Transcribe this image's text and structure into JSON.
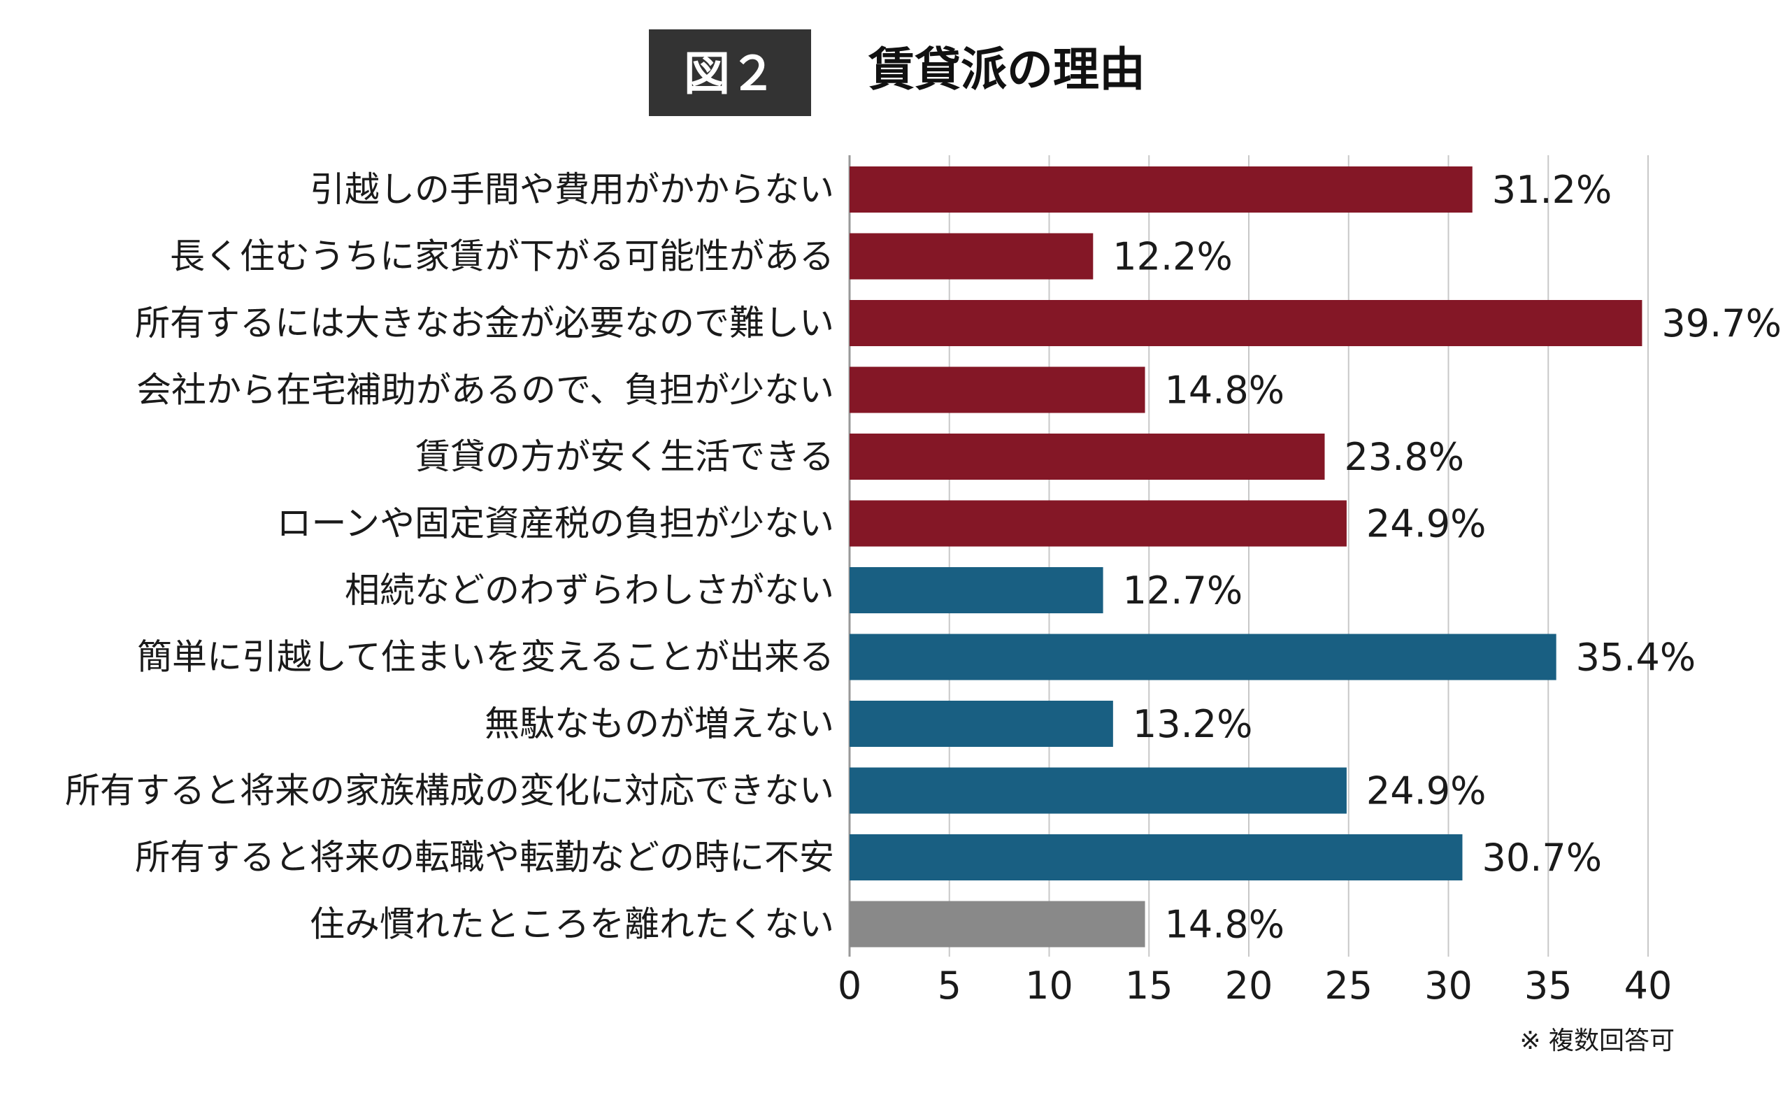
{
  "header": {
    "figure_label": "図２",
    "title": "賃貸派の理由"
  },
  "chart_data": {
    "type": "bar",
    "orientation": "horizontal",
    "title": "賃貸派の理由",
    "categories": [
      "引越しの手間や費用がかからない",
      "長く住むうちに家賃が下がる可能性がある",
      "所有するには大きなお金が必要なので難しい",
      "会社から在宅補助があるので、負担が少ない",
      "賃貸の方が安く生活できる",
      "ローンや固定資産税の負担が少ない",
      "相続などのわずらわしさがない",
      "簡単に引越して住まいを変えることが出来る",
      "無駄なものが増えない",
      "所有すると将来の家族構成の変化に対応できない",
      "所有すると将来の転職や転勤などの時に不安",
      "住み慣れたところを離れたくない"
    ],
    "values": [
      31.2,
      12.2,
      39.7,
      14.8,
      23.8,
      24.9,
      12.7,
      35.4,
      13.2,
      24.9,
      30.7,
      14.8
    ],
    "value_labels": [
      "31.2%",
      "12.2%",
      "39.7%",
      "14.8%",
      "23.8%",
      "24.9%",
      "12.7%",
      "35.4%",
      "13.2%",
      "24.9%",
      "30.7%",
      "14.8%"
    ],
    "bar_colors": [
      "#841726",
      "#841726",
      "#841726",
      "#841726",
      "#841726",
      "#841726",
      "#195f82",
      "#195f82",
      "#195f82",
      "#195f82",
      "#195f82",
      "#898989"
    ],
    "xlim": [
      0,
      40
    ],
    "xticks": [
      0,
      5,
      10,
      15,
      20,
      25,
      30,
      35,
      40
    ],
    "xtick_labels": [
      "0",
      "5",
      "10",
      "15",
      "20",
      "25",
      "30",
      "35",
      "40"
    ],
    "grid": true,
    "xlabel": "",
    "ylabel": ""
  },
  "footnote": "※ 複数回答可",
  "colors": {
    "header_box": "#333333",
    "grid": "#c8c8c8",
    "axis": "#999999"
  }
}
